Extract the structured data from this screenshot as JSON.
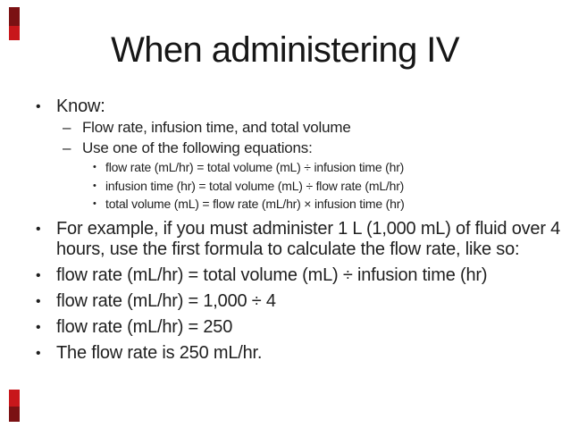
{
  "slide": {
    "title": "When administering IV",
    "bullets": [
      {
        "level": 1,
        "marker": "•",
        "text": "Know:"
      },
      {
        "level": 2,
        "marker": "–",
        "text": "Flow rate, infusion time, and total volume"
      },
      {
        "level": 2,
        "marker": "–",
        "text": "Use one of the following equations:"
      },
      {
        "level": 3,
        "marker": "•",
        "text": "flow rate (mL/hr) = total volume (mL) ÷ infusion time (hr)"
      },
      {
        "level": 3,
        "marker": "•",
        "text": "infusion time (hr) = total volume (mL) ÷ flow rate (mL/hr)"
      },
      {
        "level": 3,
        "marker": "•",
        "text": "total volume (mL) = flow rate (mL/hr) × infusion time (hr)"
      },
      {
        "level": 1,
        "marker": "•",
        "text": "For example, if you must administer 1 L (1,000 mL) of fluid over 4 hours, use the first formula to calculate the flow rate, like so:"
      },
      {
        "level": 1,
        "marker": "•",
        "text": "flow rate (mL/hr) = total volume (mL) ÷ infusion time (hr)"
      },
      {
        "level": 1,
        "marker": "•",
        "text": "flow rate (mL/hr) = 1,000 ÷ 4"
      },
      {
        "level": 1,
        "marker": "•",
        "text": "flow rate (mL/hr) = 250"
      },
      {
        "level": 1,
        "marker": "•",
        "text": "The flow rate is 250 mL/hr."
      }
    ],
    "decorations": {
      "corner_accent_red": "#c8171b",
      "corner_accent_dark_red": "#7b1113"
    },
    "background_color": "#ffffff",
    "text_color": "#1f1f1f"
  }
}
